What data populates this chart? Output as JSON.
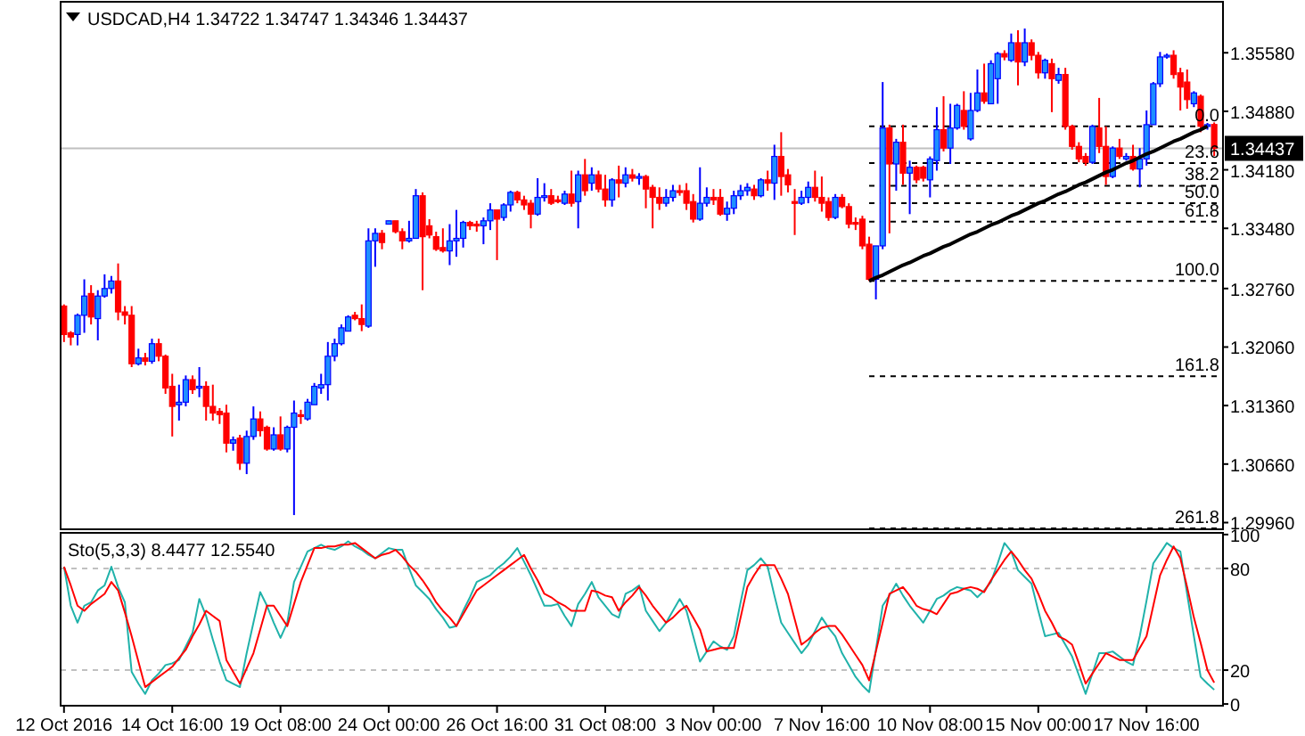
{
  "chart_data": [
    {
      "type": "candlestick",
      "title": "USDCAD,H4 1.34722 1.34747 1.34346 1.34437",
      "tick_labels": "y",
      "categories": [
        null,
        null,
        null,
        null,
        null,
        null,
        null,
        null,
        null,
        null,
        null,
        null,
        null,
        null,
        null,
        null,
        null,
        null,
        null,
        null,
        null,
        null,
        null,
        null,
        null,
        null,
        null,
        null,
        null,
        null,
        null,
        null,
        null,
        null,
        null,
        null,
        null,
        null,
        null,
        null,
        null,
        null,
        null,
        null,
        null,
        null,
        null,
        null,
        null,
        null,
        null,
        null,
        null,
        null,
        null,
        null,
        null,
        null,
        null,
        null,
        null,
        null,
        null,
        null,
        null,
        null,
        null,
        null,
        null,
        null,
        null,
        null,
        null,
        null,
        null,
        null,
        null,
        null,
        null,
        null,
        null,
        null,
        null,
        null,
        null,
        null,
        null,
        null,
        null,
        null,
        null,
        null,
        null,
        null,
        null,
        null,
        null,
        null,
        null,
        null,
        null,
        null,
        null,
        null,
        null,
        null,
        null,
        null,
        null,
        null,
        null,
        null,
        null,
        null,
        null,
        null,
        null,
        null,
        null,
        null,
        null,
        null,
        null,
        null,
        null,
        null,
        null,
        null,
        null,
        null,
        null,
        null,
        null,
        null,
        null,
        null,
        null,
        null,
        null,
        null,
        null,
        null,
        null,
        null,
        null,
        null,
        null,
        null,
        null,
        null,
        null,
        null,
        null,
        null,
        null,
        null,
        null,
        null,
        null,
        null,
        null,
        null,
        null,
        null,
        null,
        null,
        null,
        null,
        null,
        null,
        null
      ],
      "ylim": [
        1.2988,
        1.3619
      ],
      "yticks": [
        {
          "value": 1.2996,
          "label": "1.29960"
        },
        {
          "value": 1.3066,
          "label": "1.30660"
        },
        {
          "value": 1.3136,
          "label": "1.31360"
        },
        {
          "value": 1.3206,
          "label": "1.32060"
        },
        {
          "value": 1.3276,
          "label": "1.32760"
        },
        {
          "value": 1.3348,
          "label": "1.33480"
        },
        {
          "value": 1.3418,
          "label": "1.34180"
        },
        {
          "value": 1.3488,
          "label": "1.34880"
        },
        {
          "value": 1.3558,
          "label": "1.35580"
        }
      ],
      "ohlc": [
        [
          1.3255,
          1.3257,
          1.3212,
          1.3221
        ],
        [
          1.3223,
          1.3225,
          1.3208,
          1.3218
        ],
        [
          1.3221,
          1.3246,
          1.3208,
          1.3244
        ],
        [
          1.3244,
          1.3287,
          1.3223,
          1.3267
        ],
        [
          1.327,
          1.328,
          1.3233,
          1.3242
        ],
        [
          1.324,
          1.3274,
          1.3214,
          1.3267
        ],
        [
          1.3267,
          1.3293,
          1.3265,
          1.3276
        ],
        [
          1.3276,
          1.3291,
          1.327,
          1.3285
        ],
        [
          1.3285,
          1.3306,
          1.3238,
          1.3248
        ],
        [
          1.3248,
          1.3255,
          1.3233,
          1.3244
        ],
        [
          1.3244,
          1.3255,
          1.3182,
          1.3186
        ],
        [
          1.3186,
          1.3204,
          1.3184,
          1.3193
        ],
        [
          1.3193,
          1.3199,
          1.3184,
          1.3189
        ],
        [
          1.3189,
          1.3216,
          1.3186,
          1.321
        ],
        [
          1.321,
          1.3216,
          1.3189,
          1.3195
        ],
        [
          1.3195,
          1.3197,
          1.315,
          1.3157
        ],
        [
          1.3159,
          1.3174,
          1.3099,
          1.3135
        ],
        [
          1.3137,
          1.3161,
          1.3118,
          1.314
        ],
        [
          1.314,
          1.3172,
          1.3135,
          1.3167
        ],
        [
          1.3167,
          1.3172,
          1.315,
          1.3155
        ],
        [
          1.3157,
          1.3182,
          1.3146,
          1.3159
        ],
        [
          1.3159,
          1.3165,
          1.3118,
          1.3135
        ],
        [
          1.3135,
          1.3161,
          1.3118,
          1.3127
        ],
        [
          1.3129,
          1.3133,
          1.3114,
          1.3125
        ],
        [
          1.3127,
          1.3137,
          1.308,
          1.3091
        ],
        [
          1.3091,
          1.3099,
          1.3082,
          1.3095
        ],
        [
          1.3097,
          1.3101,
          1.3059,
          1.3067
        ],
        [
          1.3067,
          1.3106,
          1.3054,
          1.3099
        ],
        [
          1.3099,
          1.3135,
          1.3095,
          1.312
        ],
        [
          1.312,
          1.3129,
          1.3099,
          1.3106
        ],
        [
          1.311,
          1.3112,
          1.3082,
          1.3084
        ],
        [
          1.3084,
          1.311,
          1.3082,
          1.3101
        ],
        [
          1.3101,
          1.3123,
          1.3082,
          1.3084
        ],
        [
          1.3084,
          1.3112,
          1.308,
          1.311
        ],
        [
          1.311,
          1.3142,
          1.3005,
          1.3127
        ],
        [
          1.3125,
          1.3131,
          1.3114,
          1.3123
        ],
        [
          1.312,
          1.3144,
          1.3118,
          1.314
        ],
        [
          1.3137,
          1.3163,
          1.3137,
          1.3159
        ],
        [
          1.3157,
          1.3174,
          1.315,
          1.3161
        ],
        [
          1.3161,
          1.3212,
          1.3142,
          1.3195
        ],
        [
          1.3195,
          1.3216,
          1.3189,
          1.321
        ],
        [
          1.321,
          1.3233,
          1.3208,
          1.3229
        ],
        [
          1.3225,
          1.3244,
          1.3225,
          1.3242
        ],
        [
          1.3244,
          1.3248,
          1.3238,
          1.324
        ],
        [
          1.324,
          1.3257,
          1.3225,
          1.3233
        ],
        [
          1.3231,
          1.3348,
          1.3229,
          1.3333
        ],
        [
          1.3333,
          1.3348,
          1.3302,
          1.3342
        ],
        [
          1.3342,
          1.3346,
          1.3323,
          1.3331
        ],
        [
          1.3353,
          1.3357,
          1.3353,
          1.3357
        ],
        [
          1.3357,
          1.3357,
          1.3342,
          1.3344
        ],
        [
          1.3344,
          1.3348,
          1.3323,
          1.3333
        ],
        [
          1.3333,
          1.3357,
          1.3331,
          1.3336
        ],
        [
          1.3336,
          1.3395,
          1.3336,
          1.3387
        ],
        [
          1.3387,
          1.3391,
          1.3274,
          1.3338
        ],
        [
          1.3351,
          1.3359,
          1.3336,
          1.334
        ],
        [
          1.3338,
          1.3344,
          1.3321,
          1.3323
        ],
        [
          1.3325,
          1.3348,
          1.3319,
          1.3321
        ],
        [
          1.3321,
          1.3353,
          1.3304,
          1.3333
        ],
        [
          1.3333,
          1.337,
          1.3314,
          1.3336
        ],
        [
          1.3336,
          1.3357,
          1.3325,
          1.3355
        ],
        [
          1.3355,
          1.3357,
          1.3346,
          1.3351
        ],
        [
          1.3353,
          1.3357,
          1.3344,
          1.3351
        ],
        [
          1.3351,
          1.3361,
          1.3329,
          1.3357
        ],
        [
          1.3357,
          1.3378,
          1.3346,
          1.337
        ],
        [
          1.337,
          1.337,
          1.331,
          1.3359
        ],
        [
          1.3361,
          1.3378,
          1.3357,
          1.3376
        ],
        [
          1.3376,
          1.3393,
          1.3368,
          1.3391
        ],
        [
          1.3391,
          1.3393,
          1.3378,
          1.3382
        ],
        [
          1.3382,
          1.3387,
          1.337,
          1.3376
        ],
        [
          1.3378,
          1.3382,
          1.3348,
          1.3365
        ],
        [
          1.3365,
          1.3408,
          1.3363,
          1.3385
        ],
        [
          1.3385,
          1.3402,
          1.338,
          1.3387
        ],
        [
          1.3387,
          1.3395,
          1.3376,
          1.3378
        ],
        [
          1.3382,
          1.3387,
          1.3378,
          1.338
        ],
        [
          1.3378,
          1.3393,
          1.3376,
          1.3389
        ],
        [
          1.3389,
          1.3417,
          1.3374,
          1.3378
        ],
        [
          1.338,
          1.3417,
          1.3348,
          1.3412
        ],
        [
          1.3412,
          1.3431,
          1.3387,
          1.3393
        ],
        [
          1.3402,
          1.3421,
          1.3393,
          1.3412
        ],
        [
          1.3412,
          1.3417,
          1.3391,
          1.3395
        ],
        [
          1.3395,
          1.3412,
          1.3374,
          1.3382
        ],
        [
          1.3382,
          1.3408,
          1.3374,
          1.3406
        ],
        [
          1.3406,
          1.3423,
          1.3385,
          1.3402
        ],
        [
          1.3402,
          1.3421,
          1.3397,
          1.3412
        ],
        [
          1.3412,
          1.3419,
          1.3404,
          1.3408
        ],
        [
          1.3408,
          1.3414,
          1.34,
          1.341
        ],
        [
          1.341,
          1.3412,
          1.3372,
          1.3395
        ],
        [
          1.3397,
          1.34,
          1.3348,
          1.3385
        ],
        [
          1.3385,
          1.3397,
          1.337,
          1.3378
        ],
        [
          1.3378,
          1.3395,
          1.3374,
          1.3385
        ],
        [
          1.3385,
          1.34,
          1.338,
          1.3393
        ],
        [
          1.3393,
          1.34,
          1.3387,
          1.3391
        ],
        [
          1.3393,
          1.3402,
          1.337,
          1.3378
        ],
        [
          1.338,
          1.3389,
          1.3355,
          1.3359
        ],
        [
          1.3359,
          1.3421,
          1.3357,
          1.3378
        ],
        [
          1.3378,
          1.3397,
          1.3374,
          1.3385
        ],
        [
          1.3385,
          1.3395,
          1.3376,
          1.3382
        ],
        [
          1.3385,
          1.3395,
          1.3363,
          1.3365
        ],
        [
          1.3365,
          1.338,
          1.3357,
          1.3372
        ],
        [
          1.3372,
          1.3393,
          1.3365,
          1.3387
        ],
        [
          1.3387,
          1.34,
          1.3382,
          1.3393
        ],
        [
          1.3393,
          1.3402,
          1.3387,
          1.3397
        ],
        [
          1.3395,
          1.34,
          1.3382,
          1.3387
        ],
        [
          1.3387,
          1.3408,
          1.3385,
          1.3406
        ],
        [
          1.3406,
          1.3417,
          1.3393,
          1.3402
        ],
        [
          1.3402,
          1.3448,
          1.3382,
          1.3434
        ],
        [
          1.3434,
          1.3463,
          1.3387,
          1.341
        ],
        [
          1.3412,
          1.3419,
          1.3391,
          1.34
        ],
        [
          1.338,
          1.3395,
          1.334,
          1.3378
        ],
        [
          1.3378,
          1.3393,
          1.3376,
          1.3385
        ],
        [
          1.3385,
          1.3404,
          1.3378,
          1.3397
        ],
        [
          1.3397,
          1.3417,
          1.338,
          1.3385
        ],
        [
          1.3385,
          1.341,
          1.3368,
          1.3378
        ],
        [
          1.338,
          1.3385,
          1.3357,
          1.3361
        ],
        [
          1.3361,
          1.3389,
          1.3359,
          1.3385
        ],
        [
          1.3385,
          1.3389,
          1.3372,
          1.3374
        ],
        [
          1.3374,
          1.3378,
          1.3348,
          1.3353
        ],
        [
          1.3355,
          1.3361,
          1.3346,
          1.3353
        ],
        [
          1.3359,
          1.3363,
          1.3323,
          1.3327
        ],
        [
          1.3329,
          1.3338,
          1.3285,
          1.3287
        ],
        [
          1.3287,
          1.3327,
          1.3263,
          1.3327
        ],
        [
          1.3327,
          1.3523,
          1.3323,
          1.3468
        ],
        [
          1.3468,
          1.3472,
          1.3342,
          1.3425
        ],
        [
          1.3425,
          1.3455,
          1.3393,
          1.3451
        ],
        [
          1.3451,
          1.3472,
          1.34,
          1.3414
        ],
        [
          1.3414,
          1.3429,
          1.3365,
          1.3421
        ],
        [
          1.3421,
          1.3423,
          1.3402,
          1.3406
        ],
        [
          1.3421,
          1.3423,
          1.3404,
          1.3408
        ],
        [
          1.3406,
          1.3434,
          1.3385,
          1.3431
        ],
        [
          1.3429,
          1.3493,
          1.3417,
          1.3466
        ],
        [
          1.3466,
          1.3506,
          1.344,
          1.3444
        ],
        [
          1.3444,
          1.3497,
          1.3425,
          1.3468
        ],
        [
          1.3468,
          1.3497,
          1.3466,
          1.3495
        ],
        [
          1.3489,
          1.3512,
          1.3466,
          1.347
        ],
        [
          1.3455,
          1.351,
          1.3453,
          1.3489
        ],
        [
          1.3489,
          1.3538,
          1.3487,
          1.351
        ],
        [
          1.351,
          1.3545,
          1.3497,
          1.35
        ],
        [
          1.3497,
          1.3549,
          1.3497,
          1.3545
        ],
        [
          1.3527,
          1.3559,
          1.3497,
          1.3557
        ],
        [
          1.3557,
          1.3561,
          1.3549,
          1.3553
        ],
        [
          1.3549,
          1.3581,
          1.3547,
          1.357
        ],
        [
          1.357,
          1.3585,
          1.3519,
          1.3547
        ],
        [
          1.3547,
          1.3587,
          1.3542,
          1.357
        ],
        [
          1.357,
          1.3574,
          1.3549,
          1.3555
        ],
        [
          1.3555,
          1.3559,
          1.3527,
          1.3534
        ],
        [
          1.3534,
          1.3551,
          1.3527,
          1.3549
        ],
        [
          1.3545,
          1.3551,
          1.3487,
          1.3527
        ],
        [
          1.3525,
          1.354,
          1.3521,
          1.3532
        ],
        [
          1.3532,
          1.354,
          1.3466,
          1.347
        ],
        [
          1.347,
          1.3472,
          1.3442,
          1.3446
        ],
        [
          1.3446,
          1.3451,
          1.3427,
          1.3431
        ],
        [
          1.3434,
          1.3438,
          1.3423,
          1.3427
        ],
        [
          1.3427,
          1.3472,
          1.3425,
          1.347
        ],
        [
          1.3468,
          1.3504,
          1.3438,
          1.3446
        ],
        [
          1.3446,
          1.347,
          1.34,
          1.341
        ],
        [
          1.341,
          1.3446,
          1.3408,
          1.3444
        ],
        [
          1.3444,
          1.3455,
          1.3431,
          1.3434
        ],
        [
          1.3431,
          1.3438,
          1.3429,
          1.3434
        ],
        [
          1.3434,
          1.3448,
          1.3417,
          1.3419
        ],
        [
          1.3419,
          1.3444,
          1.3397,
          1.3431
        ],
        [
          1.3431,
          1.3489,
          1.3423,
          1.3472
        ],
        [
          1.3472,
          1.3523,
          1.3472,
          1.3521
        ],
        [
          1.3521,
          1.3559,
          1.3517,
          1.3553
        ],
        [
          1.3553,
          1.3557,
          1.3551,
          1.3555
        ],
        [
          1.3555,
          1.3561,
          1.3527,
          1.3532
        ],
        [
          1.3534,
          1.354,
          1.3489,
          1.3517
        ],
        [
          1.3523,
          1.3538,
          1.3491,
          1.3502
        ],
        [
          1.3497,
          1.3512,
          1.3493,
          1.351
        ],
        [
          1.3506,
          1.3508,
          1.3463,
          1.347
        ],
        [
          1.347,
          1.3474,
          1.3466,
          1.3472
        ],
        [
          1.34722,
          1.34747,
          1.34346,
          1.34437
        ]
      ],
      "series": [
        {
          "type": "line",
          "color": "#000000",
          "values": [
            null,
            null,
            null,
            null,
            null,
            null,
            null,
            null,
            null,
            null,
            null,
            null,
            null,
            null,
            null,
            null,
            null,
            null,
            null,
            null,
            null,
            null,
            null,
            null,
            null,
            null,
            null,
            null,
            null,
            null,
            null,
            null,
            null,
            null,
            null,
            null,
            null,
            null,
            null,
            null,
            null,
            null,
            null,
            null,
            null,
            null,
            null,
            null,
            null,
            null,
            null,
            null,
            null,
            null,
            null,
            null,
            null,
            null,
            null,
            null,
            null,
            null,
            null,
            null,
            null,
            null,
            null,
            null,
            null,
            null,
            null,
            null,
            null,
            null,
            null,
            null,
            null,
            null,
            null,
            null,
            null,
            null,
            null,
            null,
            null,
            null,
            null,
            null,
            null,
            null,
            null,
            null,
            null,
            null,
            null,
            null,
            null,
            null,
            null,
            null,
            null,
            null,
            null,
            null,
            null,
            null,
            null,
            null,
            null,
            null,
            null,
            null,
            null,
            null,
            null,
            null,
            null,
            null,
            null,
            1.3285,
            1.3289,
            1.3292,
            1.3296,
            1.33,
            1.3304,
            1.3307,
            1.3311,
            1.3315,
            1.3318,
            1.3322,
            1.3326,
            1.3329,
            1.3333,
            1.3337,
            1.3341,
            1.3344,
            1.3348,
            1.3352,
            1.3355,
            1.3359,
            1.3363,
            1.3366,
            1.337,
            1.3374,
            1.3378,
            1.3381,
            1.3385,
            1.3389,
            1.3392,
            1.3396,
            1.34,
            1.3403,
            1.3407,
            1.3411,
            1.3415,
            1.3418,
            1.3422,
            1.3426,
            1.3429,
            1.3433,
            1.3437,
            1.344,
            1.3444,
            1.3448,
            1.3452,
            1.3455,
            1.3459,
            1.3463,
            1.3466,
            1.347,
            null
          ]
        }
      ],
      "ref_lines": [
        {
          "axis": "y",
          "value": 1.34437,
          "label": "1.34437",
          "color": "#c0c0c0",
          "line_style": "solid"
        },
        {
          "axis": "y",
          "value": 1.347,
          "color": "#000000",
          "line_style": "dashed"
        },
        {
          "axis": "y",
          "value": 1.3426,
          "color": "#000000",
          "line_style": "dashed"
        },
        {
          "axis": "y",
          "value": 1.3399,
          "color": "#000000",
          "line_style": "dashed"
        },
        {
          "axis": "y",
          "value": 1.3378,
          "color": "#000000",
          "line_style": "dashed"
        },
        {
          "axis": "y",
          "value": 1.3356,
          "color": "#000000",
          "line_style": "dashed"
        },
        {
          "axis": "y",
          "value": 1.3285,
          "color": "#000000",
          "line_style": "dashed"
        },
        {
          "axis": "y",
          "value": 1.3171,
          "color": "#000000",
          "line_style": "dashed"
        },
        {
          "axis": "y",
          "value": 1.2989,
          "color": "#000000",
          "line_style": "dashed"
        }
      ],
      "annotations": [
        {
          "text": "0.0",
          "y": 1.347
        },
        {
          "text": "23.6",
          "y": 1.3426
        },
        {
          "text": "38.2",
          "y": 1.3399
        },
        {
          "text": "50.0",
          "y": 1.3378
        },
        {
          "text": "61.8",
          "y": 1.3356
        },
        {
          "text": "100.0",
          "y": 1.3285
        },
        {
          "text": "161.8",
          "y": 1.3171
        },
        {
          "text": "261.8",
          "y": 1.2989
        }
      ]
    },
    {
      "type": "line",
      "title": "Sto(5,3,3) 8.4477 12.5540",
      "categories": [
        "12 Oct 2016",
        null,
        null,
        null,
        null,
        null,
        null,
        null,
        null,
        null,
        null,
        null,
        null,
        null,
        null,
        null,
        "14 Oct 16:00",
        null,
        null,
        null,
        null,
        null,
        null,
        null,
        null,
        null,
        null,
        null,
        null,
        null,
        null,
        null,
        "19 Oct 08:00",
        null,
        null,
        null,
        null,
        null,
        null,
        null,
        null,
        null,
        null,
        null,
        null,
        null,
        null,
        null,
        "24 Oct 00:00",
        null,
        null,
        null,
        null,
        null,
        null,
        null,
        null,
        null,
        null,
        null,
        null,
        null,
        null,
        null,
        "26 Oct 16:00",
        null,
        null,
        null,
        null,
        null,
        null,
        null,
        null,
        null,
        null,
        null,
        null,
        null,
        null,
        null,
        "31 Oct 08:00",
        null,
        null,
        null,
        null,
        null,
        null,
        null,
        null,
        null,
        null,
        null,
        null,
        null,
        null,
        null,
        "3 Nov 00:00",
        null,
        null,
        null,
        null,
        null,
        null,
        null,
        null,
        null,
        null,
        null,
        null,
        null,
        null,
        null,
        "7 Nov 16:00",
        null,
        null,
        null,
        null,
        null,
        null,
        null,
        null,
        null,
        null,
        null,
        null,
        null,
        null,
        null,
        "10 Nov 08:00",
        null,
        null,
        null,
        null,
        null,
        null,
        null,
        null,
        null,
        null,
        null,
        null,
        null,
        null,
        null,
        "15 Nov 00:00",
        null,
        null,
        null,
        null,
        null,
        null,
        null,
        null,
        null,
        null,
        null,
        null,
        null,
        null,
        null,
        "17 Nov 16:00",
        null,
        null,
        null,
        null,
        null,
        null,
        null,
        null,
        null,
        null
      ],
      "ylim": [
        -1,
        101
      ],
      "yticks": [
        0,
        20,
        80,
        100
      ],
      "series": [
        {
          "color": "#20b2aa",
          "values": [
            81,
            58,
            48,
            58,
            60,
            67,
            70,
            81,
            69,
            60,
            19,
            12,
            6,
            14,
            18,
            23,
            24,
            26,
            34,
            42,
            62,
            52,
            38,
            25,
            14,
            12,
            10,
            30,
            48,
            66,
            58,
            48,
            39,
            48,
            72,
            81,
            90,
            92,
            94,
            92,
            91,
            93,
            96,
            93,
            91,
            88,
            86,
            89,
            92,
            91,
            91,
            80,
            70,
            66,
            62,
            56,
            51,
            45,
            46,
            55,
            63,
            72,
            74,
            76,
            80,
            83,
            87,
            92,
            84,
            76,
            67,
            58,
            58,
            59,
            52,
            46,
            59,
            65,
            72,
            63,
            58,
            53,
            51,
            65,
            67,
            70,
            55,
            49,
            43,
            48,
            55,
            62,
            55,
            40,
            25,
            31,
            37,
            34,
            32,
            40,
            60,
            79,
            82,
            86,
            81,
            64,
            48,
            42,
            36,
            30,
            35,
            43,
            51,
            45,
            40,
            30,
            23,
            16,
            11,
            7,
            32,
            58,
            64,
            71,
            64,
            58,
            53,
            48,
            55,
            62,
            64,
            67,
            69,
            68,
            67,
            63,
            67,
            72,
            83,
            95,
            90,
            79,
            75,
            71,
            55,
            40,
            41,
            42,
            35,
            28,
            17,
            6,
            18,
            30,
            30,
            31,
            28,
            25,
            23,
            40,
            61,
            83,
            89,
            95,
            92,
            90,
            65,
            40,
            16,
            12,
            8.4
          ]
        },
        {
          "color": "#ff0000",
          "values": [
            81,
            70,
            58,
            55,
            59,
            62,
            65,
            72,
            67,
            54,
            40,
            25,
            10,
            13,
            16,
            19,
            22,
            27,
            32,
            40,
            47,
            55,
            52,
            49,
            26,
            19,
            12,
            21,
            30,
            44,
            58,
            58,
            52,
            46,
            59,
            72,
            82,
            92,
            92,
            93,
            93,
            94,
            94,
            95,
            92,
            89,
            86,
            88,
            89,
            91,
            87,
            82,
            78,
            73,
            67,
            60,
            55,
            51,
            46,
            53,
            60,
            67,
            70,
            73,
            76,
            79,
            82,
            85,
            88,
            80,
            73,
            65,
            63,
            60,
            58,
            55,
            55,
            55,
            67,
            66,
            64,
            63,
            55,
            60,
            64,
            69,
            64,
            58,
            53,
            48,
            51,
            55,
            58,
            51,
            44,
            31,
            32,
            33,
            33,
            33,
            51,
            69,
            76,
            82,
            82,
            82,
            74,
            65,
            50,
            35,
            38,
            42,
            45,
            46,
            46,
            41,
            35,
            29,
            23,
            14,
            31,
            48,
            65,
            67,
            69,
            64,
            58,
            56,
            55,
            53,
            59,
            65,
            66,
            68,
            69,
            68,
            66,
            73,
            79,
            85,
            90,
            85,
            79,
            74,
            65,
            55,
            48,
            40,
            38,
            35,
            24,
            12,
            18,
            24,
            30,
            28,
            26,
            26,
            26,
            33,
            40,
            58,
            76,
            85,
            93,
            86,
            69,
            51,
            36,
            20,
            12.6
          ]
        }
      ],
      "ref_lines": [
        {
          "axis": "y",
          "value": 80,
          "color": "#c0c0c0",
          "line_style": "dashed"
        },
        {
          "axis": "y",
          "value": 20,
          "color": "#c0c0c0",
          "line_style": "dashed"
        }
      ]
    }
  ]
}
